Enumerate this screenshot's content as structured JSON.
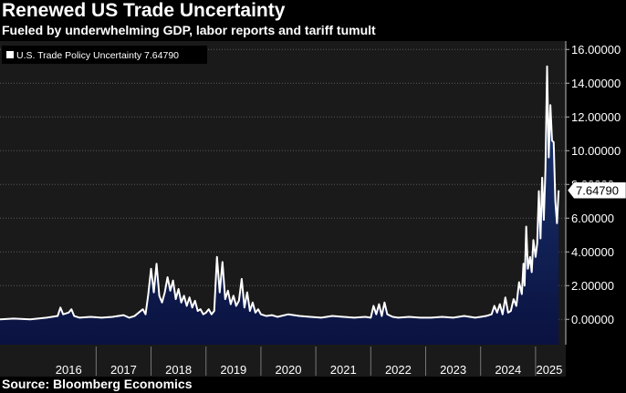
{
  "title": "Renewed US Trade Uncertainty",
  "subtitle": "Fueled by underwhelming GDP, labor reports and tariff tumult",
  "source": "Source: Bloomberg Economics",
  "colors": {
    "background": "#1a1a1a",
    "page": "#000000",
    "line": "#ffffff",
    "fill_top": "#1e3a78",
    "fill_bottom": "#0a1240",
    "grid": "#5a5a5a"
  },
  "chart_data": {
    "type": "area",
    "title": "Renewed US Trade Uncertainty",
    "series_name": "U.S. Trade Policy Uncertainty",
    "last_value_label": "7.64790",
    "legend_label": "U.S. Trade Policy Uncertainty 7.64790",
    "legend_position": "top-left",
    "y_axis_side": "right",
    "ylim": [
      -1.5,
      16.5
    ],
    "xlim": [
      2015.25,
      2025.55
    ],
    "y_ticks": [
      0,
      2,
      4,
      6,
      8,
      10,
      12,
      14,
      16
    ],
    "y_tick_labels": [
      "0.00000",
      "2.00000",
      "4.00000",
      "6.00000",
      "8.00000",
      "10.00000",
      "12.00000",
      "14.00000",
      "16.00000"
    ],
    "x_tick_labels": [
      "2016",
      "2017",
      "2018",
      "2019",
      "2020",
      "2021",
      "2022",
      "2023",
      "2024",
      "2025"
    ],
    "x_tick_centers": [
      2016.5,
      2017.5,
      2018.5,
      2019.5,
      2020.5,
      2021.5,
      2022.5,
      2023.5,
      2024.5,
      2025.25
    ],
    "x_dividers": [
      2017,
      2018,
      2019,
      2020,
      2021,
      2022,
      2023,
      2024,
      2025
    ],
    "grid": true,
    "x": [
      2015.25,
      2015.5,
      2015.8,
      2016.1,
      2016.3,
      2016.35,
      2016.4,
      2016.5,
      2016.55,
      2016.6,
      2016.7,
      2016.9,
      2017.1,
      2017.3,
      2017.5,
      2017.6,
      2017.7,
      2017.85,
      2017.9,
      2017.95,
      2018.0,
      2018.05,
      2018.1,
      2018.15,
      2018.2,
      2018.25,
      2018.3,
      2018.35,
      2018.4,
      2018.45,
      2018.5,
      2018.55,
      2018.6,
      2018.65,
      2018.7,
      2018.75,
      2018.8,
      2018.85,
      2018.9,
      2018.95,
      2019.0,
      2019.05,
      2019.1,
      2019.15,
      2019.2,
      2019.25,
      2019.3,
      2019.35,
      2019.4,
      2019.45,
      2019.5,
      2019.55,
      2019.6,
      2019.65,
      2019.7,
      2019.75,
      2019.8,
      2019.85,
      2019.9,
      2019.95,
      2020.0,
      2020.1,
      2020.2,
      2020.3,
      2020.5,
      2020.7,
      2020.9,
      2021.1,
      2021.3,
      2021.5,
      2021.7,
      2021.9,
      2022.0,
      2022.05,
      2022.1,
      2022.15,
      2022.2,
      2022.25,
      2022.3,
      2022.4,
      2022.5,
      2022.7,
      2022.9,
      2023.1,
      2023.3,
      2023.5,
      2023.7,
      2023.9,
      2024.0,
      2024.1,
      2024.2,
      2024.25,
      2024.3,
      2024.35,
      2024.4,
      2024.45,
      2024.5,
      2024.55,
      2024.6,
      2024.65,
      2024.7,
      2024.75,
      2024.78,
      2024.8,
      2024.83,
      2024.86,
      2024.9,
      2024.93,
      2024.96,
      2025.0,
      2025.03,
      2025.06,
      2025.09,
      2025.12,
      2025.15,
      2025.18,
      2025.21,
      2025.24,
      2025.27,
      2025.3,
      2025.33,
      2025.36,
      2025.39,
      2025.42
    ],
    "values": [
      0.0,
      0.05,
      0.0,
      0.1,
      0.2,
      0.7,
      0.3,
      0.4,
      0.6,
      0.2,
      0.1,
      0.15,
      0.1,
      0.15,
      0.25,
      0.1,
      0.2,
      0.6,
      0.3,
      1.5,
      3.0,
      1.6,
      3.3,
      1.4,
      1.0,
      1.6,
      2.5,
      1.7,
      2.3,
      1.2,
      1.8,
      1.0,
      1.4,
      0.8,
      1.3,
      0.7,
      1.1,
      0.5,
      0.6,
      0.3,
      0.4,
      0.6,
      0.3,
      0.5,
      3.7,
      1.6,
      3.4,
      1.2,
      1.7,
      0.9,
      1.4,
      0.8,
      1.1,
      2.4,
      0.7,
      1.6,
      0.5,
      1.0,
      0.4,
      0.6,
      0.3,
      0.2,
      0.25,
      0.15,
      0.3,
      0.2,
      0.15,
      0.1,
      0.2,
      0.15,
      0.1,
      0.15,
      0.1,
      0.8,
      0.3,
      0.9,
      0.2,
      1.0,
      0.3,
      0.15,
      0.1,
      0.15,
      0.1,
      0.1,
      0.15,
      0.1,
      0.2,
      0.1,
      0.15,
      0.2,
      0.3,
      0.8,
      0.4,
      0.9,
      0.3,
      1.3,
      0.4,
      0.5,
      1.2,
      0.8,
      2.2,
      1.5,
      3.3,
      2.0,
      5.5,
      3.0,
      3.7,
      2.8,
      4.7,
      3.7,
      4.5,
      7.6,
      4.8,
      8.4,
      5.9,
      8.9,
      15.0,
      9.6,
      12.7,
      10.6,
      10.5,
      7.0,
      5.7,
      7.6479
    ]
  }
}
